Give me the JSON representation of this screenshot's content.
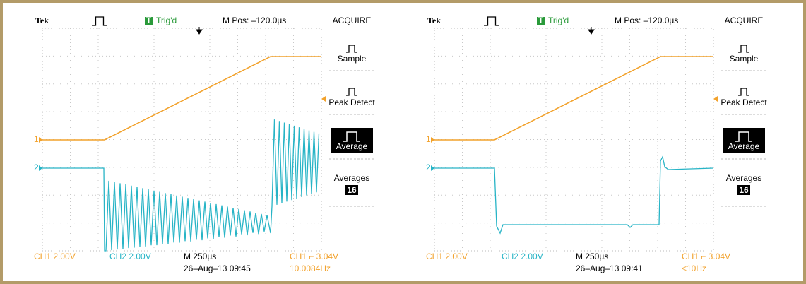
{
  "scopes": [
    {
      "header": {
        "brand": "Tek",
        "trigger_icon": "T",
        "trigger_status": "Trig'd",
        "m_pos": "M Pos: –120.0μs"
      },
      "markers": [
        "1",
        "2"
      ],
      "menu": {
        "title": "ACQUIRE",
        "items": [
          "Sample",
          "Peak Detect",
          "Average"
        ],
        "averages_label": "Averages",
        "averages_value": "16"
      },
      "footer": {
        "ch1": "CH1  2.00V",
        "ch2": "CH2  2.00V",
        "timebase": "M 250μs",
        "trigger": "CH1 ⌐ 3.04V",
        "date": "26–Aug–13 09:45",
        "frequency": "10.0084Hz"
      }
    },
    {
      "header": {
        "brand": "Tek",
        "trigger_icon": "T",
        "trigger_status": "Trig'd",
        "m_pos": "M Pos: –120.0μs"
      },
      "markers": [
        "1",
        "2"
      ],
      "menu": {
        "title": "ACQUIRE",
        "items": [
          "Sample",
          "Peak Detect",
          "Average"
        ],
        "averages_label": "Averages",
        "averages_value": "16"
      },
      "footer": {
        "ch1": "CH1  2.00V",
        "ch2": "CH2  2.00V",
        "timebase": "M 250μs",
        "trigger": "CH1 ⌐ 3.04V",
        "date": "26–Aug–13 09:41",
        "frequency": "<10Hz"
      }
    }
  ]
}
